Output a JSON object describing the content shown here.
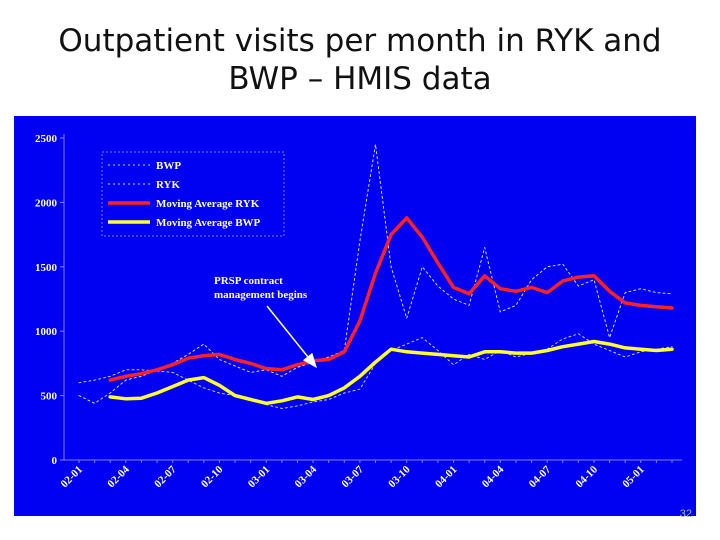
{
  "slide": {
    "title_line1": "Outpatient visits per month in RYK and",
    "title_line2": "BWP – HMIS data",
    "page_number": "32"
  },
  "chart_data": {
    "type": "line",
    "title": "",
    "xlabel": "",
    "ylabel": "",
    "ylim": [
      0,
      2500
    ],
    "yticks": [
      0,
      500,
      1000,
      1500,
      2000,
      2500
    ],
    "grid": false,
    "legend_position": "top-left",
    "background_color": "#0000f2",
    "x_tick_labels": [
      "02-01",
      "02-04",
      "02-07",
      "02-10",
      "03-01",
      "03-04",
      "03-07",
      "03-10",
      "04-01",
      "04-04",
      "04-07",
      "04-10",
      "05-01"
    ],
    "x_tick_index": [
      0,
      3,
      6,
      9,
      12,
      15,
      18,
      21,
      24,
      27,
      30,
      33,
      36
    ],
    "x": [
      "02-01",
      "02-02",
      "02-03",
      "02-04",
      "02-05",
      "02-06",
      "02-07",
      "02-08",
      "02-09",
      "02-10",
      "02-11",
      "02-12",
      "03-01",
      "03-02",
      "03-03",
      "03-04",
      "03-05",
      "03-06",
      "03-07",
      "03-08",
      "03-09",
      "03-10",
      "03-11",
      "03-12",
      "04-01",
      "04-02",
      "04-03",
      "04-04",
      "04-05",
      "04-06",
      "04-07",
      "04-08",
      "04-09",
      "04-10",
      "04-11",
      "04-12",
      "05-01",
      "05-02",
      "05-03"
    ],
    "series": [
      {
        "name": "BWP",
        "style": "dotted",
        "color": "#c8c8ff",
        "values": [
          600,
          620,
          650,
          700,
          700,
          690,
          680,
          620,
          560,
          520,
          500,
          470,
          430,
          400,
          420,
          450,
          470,
          520,
          550,
          750,
          850,
          900,
          950,
          850,
          740,
          820,
          780,
          850,
          800,
          830,
          860,
          940,
          980,
          900,
          850,
          800,
          840,
          860,
          880
        ]
      },
      {
        "name": "RYK",
        "style": "dotted",
        "color": "#d8d8ff",
        "values": [
          500,
          440,
          520,
          620,
          650,
          700,
          750,
          820,
          900,
          780,
          730,
          680,
          700,
          650,
          720,
          760,
          800,
          850,
          1700,
          2450,
          1500,
          1100,
          1500,
          1350,
          1250,
          1200,
          1650,
          1150,
          1200,
          1400,
          1500,
          1520,
          1350,
          1400,
          950,
          1300,
          1330,
          1300,
          1290
        ]
      },
      {
        "name": "Moving Average RYK",
        "style": "solid",
        "color": "#ff2222",
        "values": [
          null,
          null,
          620,
          650,
          670,
          700,
          740,
          790,
          810,
          820,
          780,
          750,
          710,
          700,
          740,
          770,
          780,
          840,
          1080,
          1450,
          1750,
          1880,
          1730,
          1530,
          1340,
          1290,
          1430,
          1330,
          1310,
          1340,
          1300,
          1390,
          1420,
          1430,
          1310,
          1220,
          1200,
          1190,
          1180
        ]
      },
      {
        "name": "Moving Average BWP",
        "style": "solid",
        "color": "#ffff33",
        "values": [
          null,
          null,
          490,
          475,
          480,
          520,
          570,
          620,
          640,
          580,
          500,
          470,
          440,
          460,
          490,
          470,
          500,
          560,
          650,
          760,
          860,
          840,
          830,
          820,
          810,
          800,
          840,
          840,
          830,
          830,
          850,
          880,
          900,
          920,
          900,
          870,
          860,
          850,
          860
        ]
      }
    ],
    "annotation": {
      "line1": "PRSP contract",
      "line2": "management begins",
      "points_to_index": 20
    }
  }
}
